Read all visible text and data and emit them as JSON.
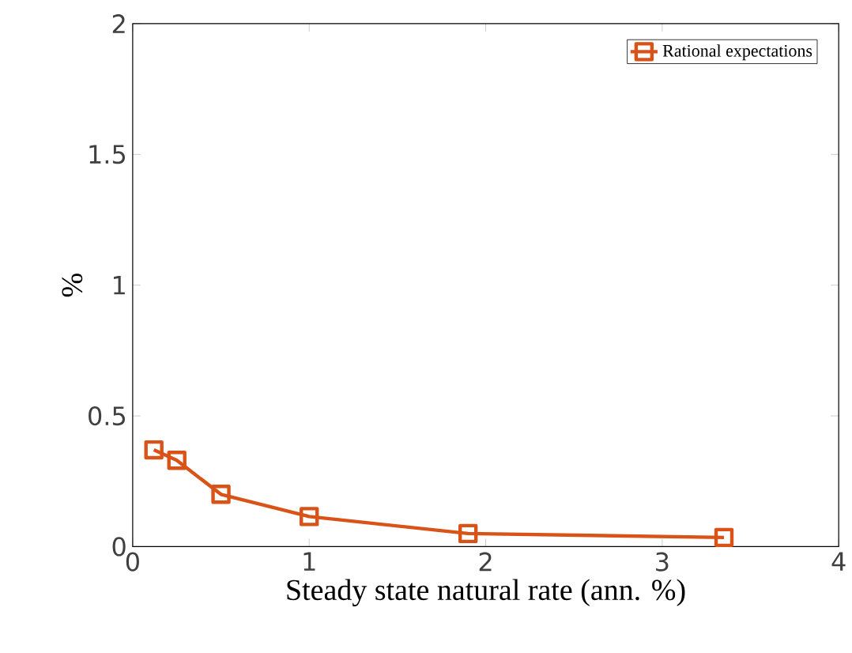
{
  "chart_data": {
    "type": "line",
    "xlabel": "Steady state natural rate (ann. %)",
    "ylabel": "%",
    "series": [
      {
        "name": "Rational expectations",
        "color": "#d95319",
        "x": [
          0.12,
          0.25,
          0.5,
          1,
          1.9,
          3.35
        ],
        "values": [
          0.37,
          0.33,
          0.2,
          0.115,
          0.05,
          0.035
        ]
      }
    ],
    "xlim": [
      0,
      4
    ],
    "ylim": [
      0,
      2
    ],
    "xticks": [
      0,
      1,
      2,
      3,
      4
    ],
    "yticks": [
      0,
      0.5,
      1,
      1.5,
      2
    ],
    "legend": "top right",
    "marker": "square",
    "line_style": "solid",
    "grid": false
  }
}
